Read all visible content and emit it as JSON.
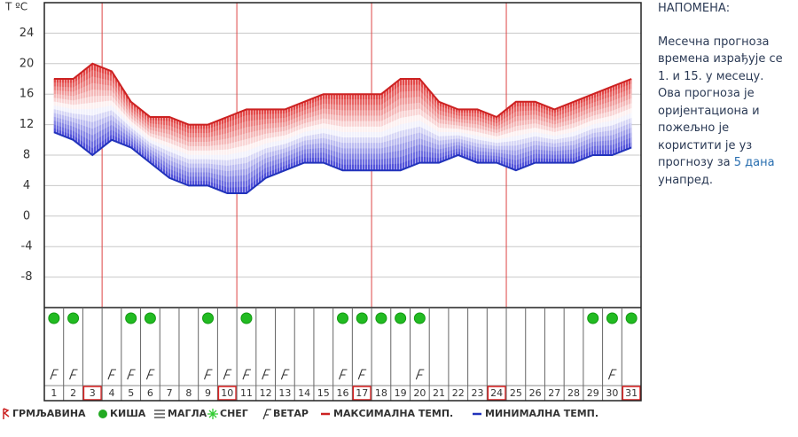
{
  "chart_data": {
    "type": "line",
    "y_label": "T ºC",
    "categories": [
      "1",
      "2",
      "3",
      "4",
      "5",
      "6",
      "7",
      "8",
      "9",
      "10",
      "11",
      "12",
      "13",
      "14",
      "15",
      "16",
      "17",
      "18",
      "19",
      "20",
      "21",
      "22",
      "23",
      "24",
      "25",
      "26",
      "27",
      "28",
      "29",
      "30",
      "31"
    ],
    "series": [
      {
        "name": "МАКСИМАЛНА ТЕМП.",
        "color": "#cc2222",
        "values": [
          18,
          18,
          20,
          19,
          15,
          13,
          13,
          12,
          12,
          13,
          14,
          14,
          14,
          15,
          16,
          16,
          16,
          16,
          18,
          18,
          15,
          14,
          14,
          13,
          15,
          15,
          14,
          15,
          16,
          17,
          18
        ]
      },
      {
        "name": "МИНИМАЛНА ТЕМП.",
        "color": "#2233bb",
        "values": [
          11,
          10,
          8,
          10,
          9,
          7,
          5,
          4,
          4,
          3,
          3,
          5,
          6,
          7,
          7,
          6,
          6,
          6,
          6,
          7,
          7,
          8,
          7,
          7,
          6,
          7,
          7,
          7,
          8,
          8,
          9
        ]
      }
    ],
    "ylim": [
      -12,
      28
    ],
    "yticks": [
      -8,
      -4,
      0,
      4,
      8,
      12,
      16,
      20,
      24
    ],
    "grid": true,
    "rain": [
      true,
      true,
      false,
      false,
      true,
      true,
      false,
      false,
      true,
      false,
      true,
      false,
      false,
      false,
      false,
      true,
      true,
      true,
      true,
      true,
      false,
      false,
      false,
      false,
      false,
      false,
      false,
      false,
      true,
      true,
      true
    ],
    "wind": [
      true,
      true,
      false,
      true,
      true,
      true,
      false,
      false,
      true,
      true,
      true,
      true,
      true,
      false,
      false,
      true,
      true,
      false,
      false,
      true,
      false,
      false,
      false,
      false,
      false,
      false,
      false,
      false,
      false,
      true,
      false
    ],
    "highlight": [
      false,
      false,
      true,
      false,
      false,
      false,
      false,
      false,
      false,
      true,
      false,
      false,
      false,
      false,
      false,
      false,
      true,
      false,
      false,
      false,
      false,
      false,
      false,
      true,
      false,
      false,
      false,
      false,
      false,
      false,
      true
    ],
    "weather_legend": [
      "ГРМЉАВИНА",
      "КИША",
      "МАГЛА",
      "СНЕГ",
      "ВЕТАР"
    ]
  },
  "note": {
    "title": "НАПОМЕНА:",
    "lines": [
      "Месечна прогноза",
      "времена израђује се",
      "1. и 15. у месецу.",
      "Ова прогноза је",
      "оријентациона и",
      "пожељно је",
      "користити је уз"
    ],
    "link_prefix": "прогнозу за",
    "link": "5 дана",
    "end": "унапред."
  }
}
